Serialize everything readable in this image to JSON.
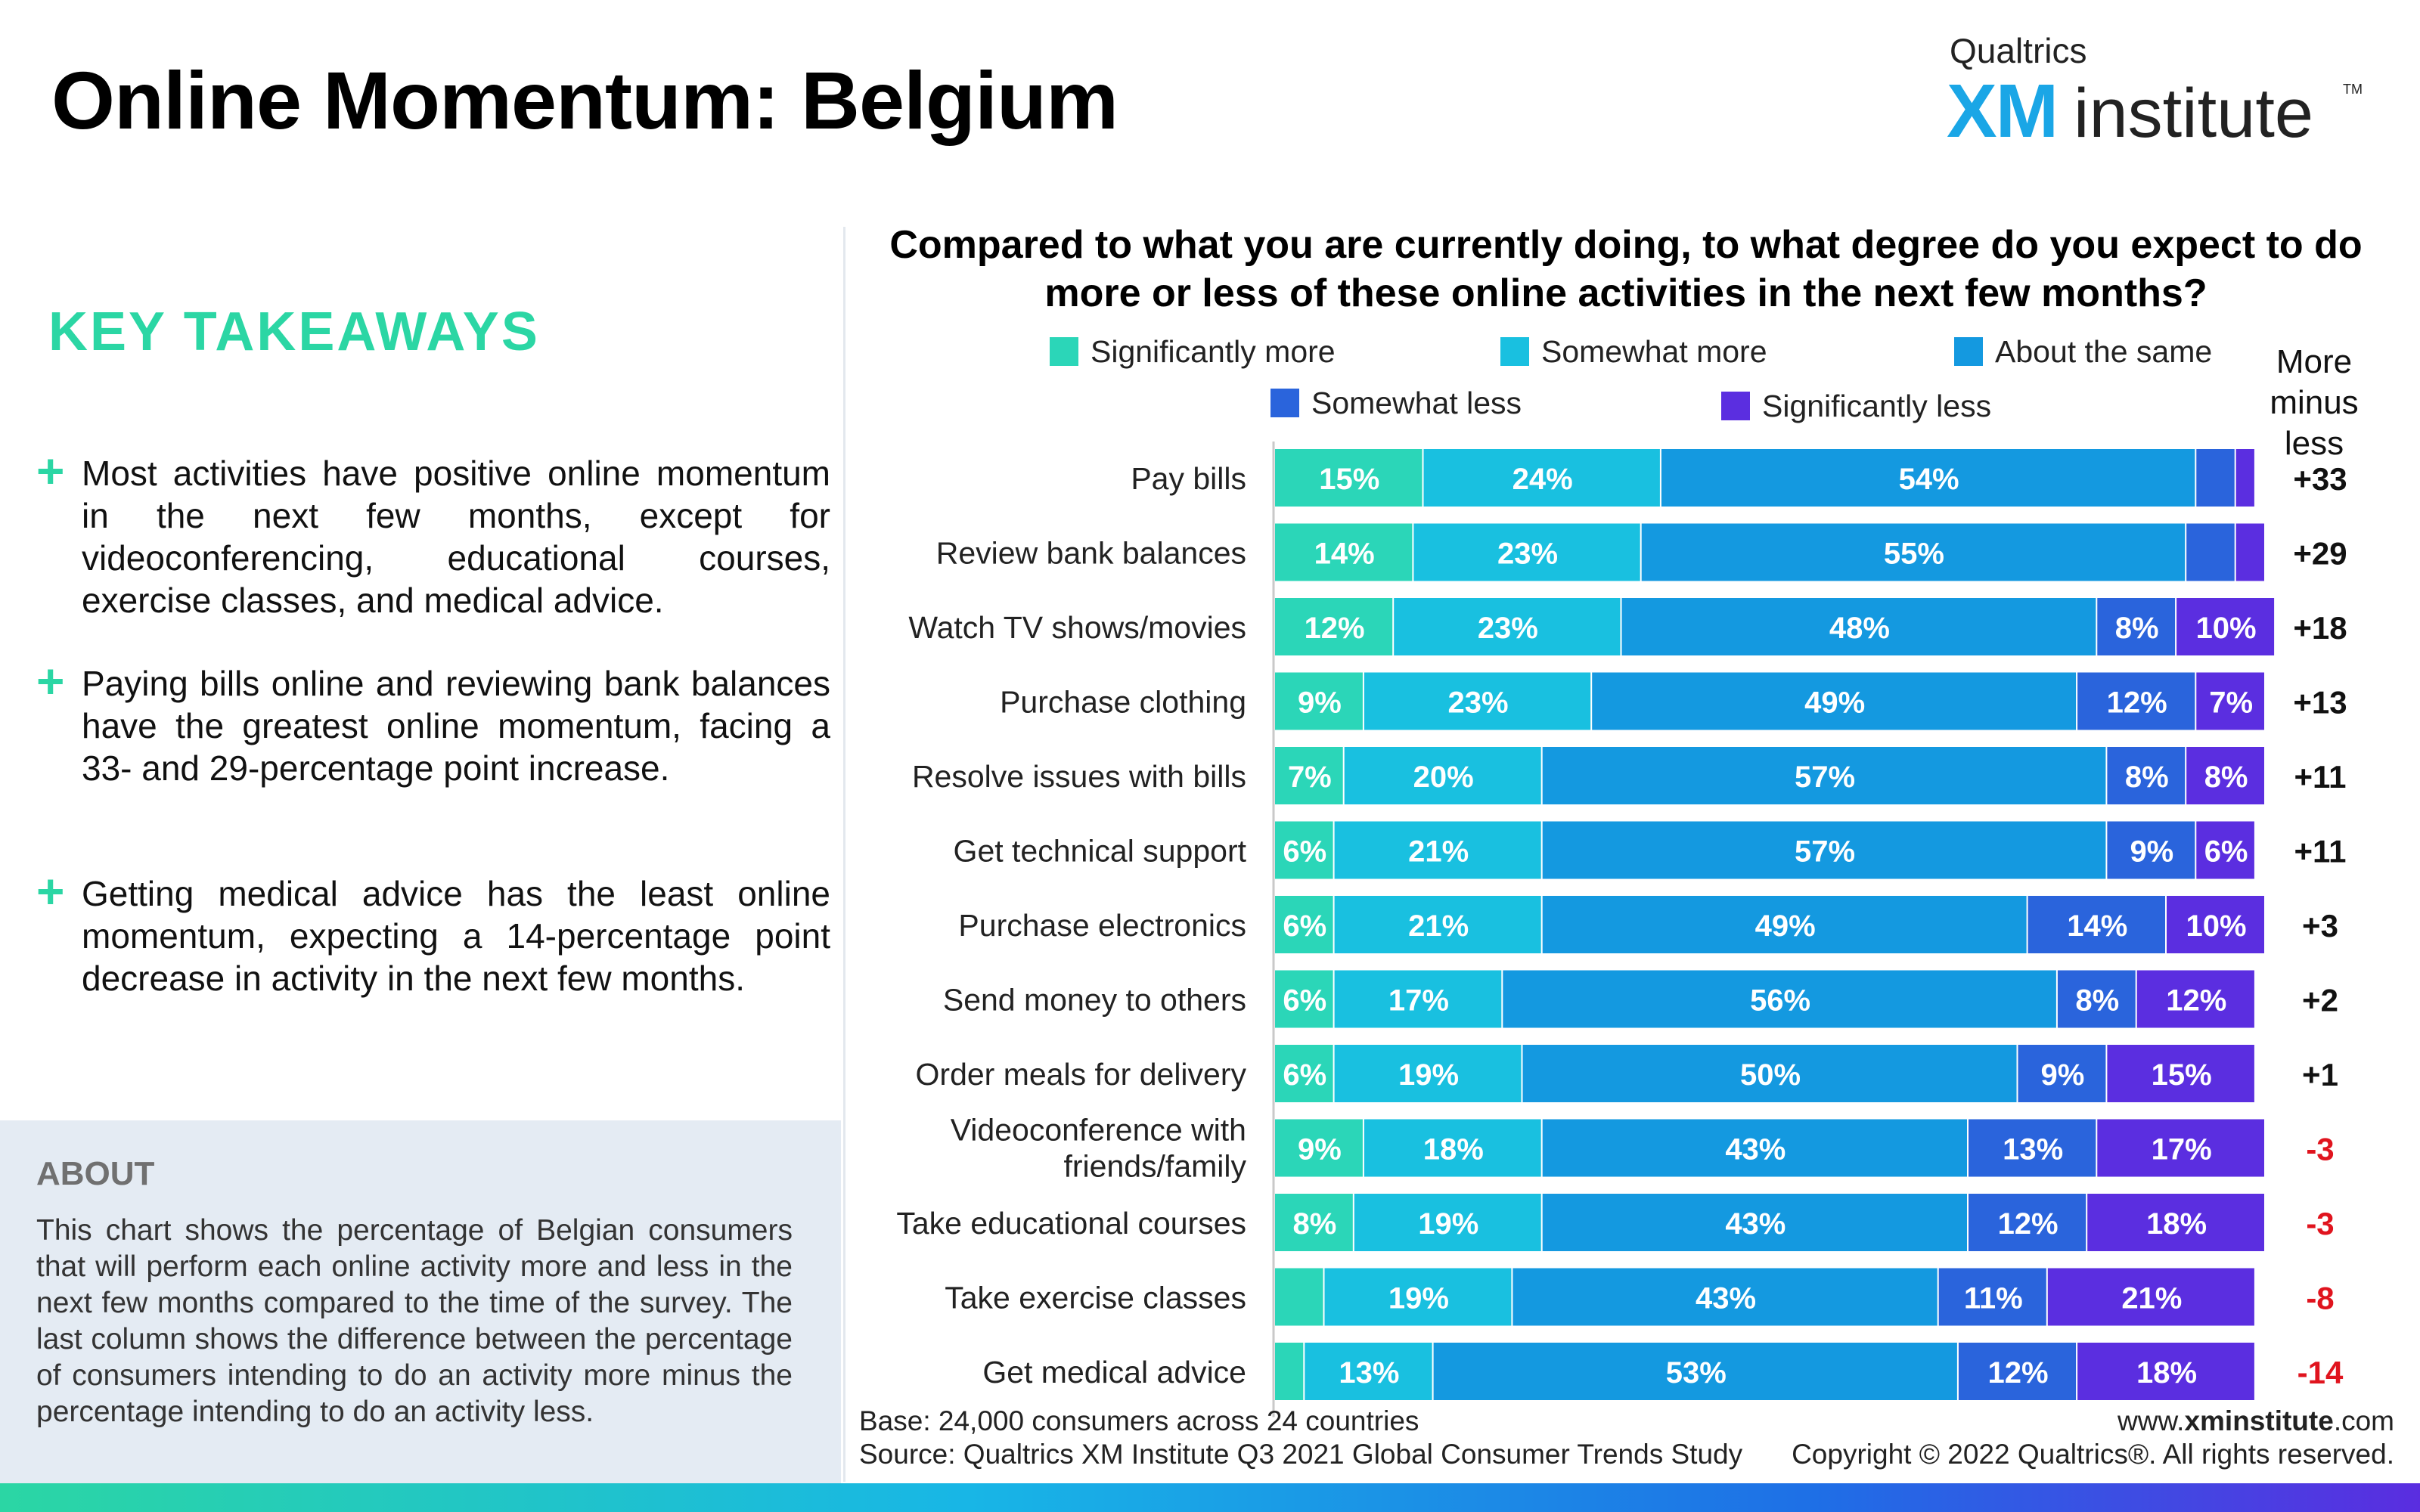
{
  "page": {
    "title": "Online Momentum: Belgium",
    "logo": {
      "top": "Qualtrics",
      "xm": "XM",
      "word": "institute",
      "tm": "TM"
    }
  },
  "takeaways": {
    "heading": "KEY TAKEAWAYS",
    "plus_glyph": "+",
    "items": [
      "Most activities have positive online momentum in the next few months, except for videoconferencing, educational courses, exercise classes, and medical advice.",
      "Paying bills online and reviewing bank balances have the greatest online momentum, facing a 33- and 29-percentage point increase.",
      "Getting medical advice has the least online momentum, expecting a 14-percentage point decrease in activity in the next few months."
    ]
  },
  "about": {
    "heading": "ABOUT",
    "text": "This chart shows the percentage of Belgian consumers that will perform each online activity more and less in the next few months compared to the time of the survey. The last column shows the difference between the percentage of consumers intending to do an activity more minus the percentage intending to do an activity less."
  },
  "footer": {
    "base": "Base: 24,000 consumers across 24 countries",
    "source": "Source: Qualtrics XM Institute Q3 2021 Global Consumer Trends Study",
    "url_prefix": "www.",
    "url_bold": "xminstitute",
    "url_suffix": ".com",
    "copyright": "Copyright © 2022 Qualtrics®. All rights reserved."
  },
  "chart_data": {
    "type": "bar",
    "orientation": "horizontal",
    "stacked": true,
    "title": "Compared to what you are currently doing, to what degree do you expect to do more or less of these online activities in the next few months?",
    "net_column_title": "More minus less",
    "categories": [
      "Pay bills",
      "Review bank balances",
      "Watch TV shows/movies",
      "Purchase clothing",
      "Resolve issues with bills",
      "Get technical support",
      "Purchase electronics",
      "Send money to others",
      "Order meals for delivery",
      "Videoconference with friends/family",
      "Take educational courses",
      "Take exercise classes",
      "Get medical advice"
    ],
    "series": [
      {
        "name": "Significantly more",
        "color": "#2bd6b8",
        "values": [
          15,
          14,
          12,
          9,
          7,
          6,
          6,
          6,
          6,
          9,
          8,
          5,
          3
        ]
      },
      {
        "name": "Somewhat more",
        "color": "#19c0e0",
        "values": [
          24,
          23,
          23,
          23,
          20,
          21,
          21,
          17,
          19,
          18,
          19,
          19,
          13
        ]
      },
      {
        "name": "About the same",
        "color": "#1499e0",
        "values": [
          54,
          55,
          48,
          49,
          57,
          57,
          49,
          56,
          50,
          43,
          43,
          43,
          53
        ]
      },
      {
        "name": "Somewhat less",
        "color": "#2a64dc",
        "values": [
          4,
          5,
          8,
          12,
          8,
          9,
          14,
          8,
          9,
          13,
          12,
          11,
          12
        ]
      },
      {
        "name": "Significantly less",
        "color": "#5b2ee0",
        "values": [
          2,
          3,
          10,
          7,
          8,
          6,
          10,
          12,
          15,
          17,
          18,
          21,
          18
        ]
      }
    ],
    "labels": [
      [
        "15%",
        "24%",
        "54%",
        "",
        ""
      ],
      [
        "14%",
        "23%",
        "55%",
        "",
        ""
      ],
      [
        "12%",
        "23%",
        "48%",
        "8%",
        "10%"
      ],
      [
        "9%",
        "23%",
        "49%",
        "12%",
        "7%"
      ],
      [
        "7%",
        "20%",
        "57%",
        "8%",
        "8%"
      ],
      [
        "6%",
        "21%",
        "57%",
        "9%",
        "6%"
      ],
      [
        "6%",
        "21%",
        "49%",
        "14%",
        "10%"
      ],
      [
        "6%",
        "17%",
        "56%",
        "8%",
        "12%"
      ],
      [
        "6%",
        "19%",
        "50%",
        "9%",
        "15%"
      ],
      [
        "9%",
        "18%",
        "43%",
        "13%",
        "17%"
      ],
      [
        "8%",
        "19%",
        "43%",
        "12%",
        "18%"
      ],
      [
        "",
        "19%",
        "43%",
        "11%",
        "21%"
      ],
      [
        "",
        "13%",
        "53%",
        "12%",
        "18%"
      ]
    ],
    "net": [
      "+33",
      "+29",
      "+18",
      "+13",
      "+11",
      "+11",
      "+3",
      "+2",
      "+1",
      "-3",
      "-3",
      "-8",
      "-14"
    ],
    "colors": {
      "net_positive": "#111111",
      "net_negative": "#e0141e",
      "label": "#ffffff"
    },
    "xlim": [
      0,
      100
    ]
  }
}
